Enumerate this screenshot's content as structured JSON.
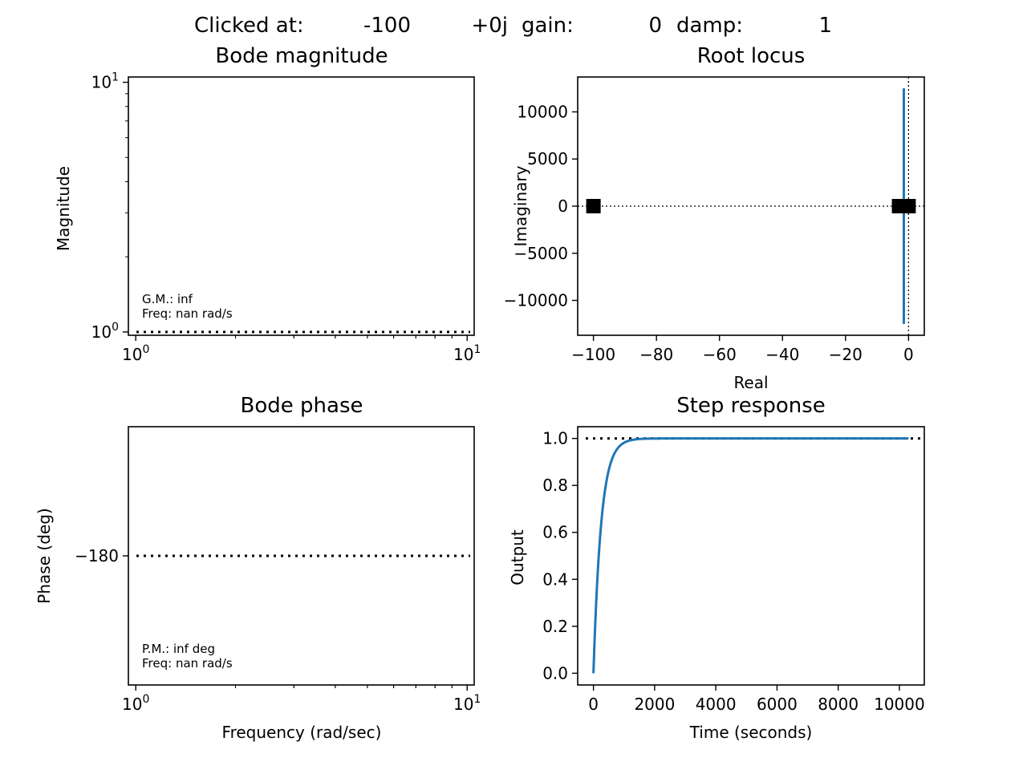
{
  "header": {
    "clicked_label": "Clicked at:",
    "clicked_real": "-100",
    "clicked_imag": "+0j",
    "gain_label": "gain:",
    "gain_value": "0",
    "damp_label": "damp:",
    "damp_value": "1"
  },
  "chart_data": [
    {
      "id": "bode_mag",
      "type": "line",
      "title": "Bode magnitude",
      "xlabel": "",
      "ylabel": "Magnitude",
      "xscale": "log",
      "yscale": "log",
      "xlim": [
        0.95,
        10.5
      ],
      "ylim": [
        0.97,
        10.5
      ],
      "xticks": [
        {
          "v": 1,
          "base": "10",
          "exp": "0"
        },
        {
          "v": 10,
          "base": "10",
          "exp": "1"
        }
      ],
      "yticks": [
        {
          "v": 1,
          "base": "10",
          "exp": "0"
        },
        {
          "v": 10,
          "base": "10",
          "exp": "1"
        }
      ],
      "reference_line": {
        "y": 1,
        "style": "dotted"
      },
      "annotation": [
        "G.M.: inf",
        "Freq: nan rad/s"
      ]
    },
    {
      "id": "root_locus",
      "type": "line",
      "title": "Root locus",
      "xlabel": "Real",
      "ylabel": "Imaginary",
      "xlim": [
        -105,
        5
      ],
      "ylim": [
        -13700,
        13700
      ],
      "xticks": [
        {
          "v": -100,
          "label": "−100"
        },
        {
          "v": -80,
          "label": "−80"
        },
        {
          "v": -60,
          "label": "−60"
        },
        {
          "v": -40,
          "label": "−40"
        },
        {
          "v": -20,
          "label": "−20"
        },
        {
          "v": 0,
          "label": "0"
        }
      ],
      "yticks": [
        {
          "v": 10000,
          "label": "10000"
        },
        {
          "v": 5000,
          "label": "5000"
        },
        {
          "v": 0,
          "label": "0"
        },
        {
          "v": -5000,
          "label": "−5000"
        },
        {
          "v": -10000,
          "label": "−10000"
        }
      ],
      "locus": {
        "x": -1.5,
        "y_min": -12500,
        "y_max": 12500
      },
      "markers": [
        {
          "x": -100,
          "y": 0
        },
        {
          "x": -3,
          "y": 0
        },
        {
          "x": 0,
          "y": 0
        }
      ],
      "reference_lines": [
        {
          "axis": "x",
          "value": 0
        },
        {
          "axis": "y",
          "value": 0
        }
      ]
    },
    {
      "id": "bode_phase",
      "type": "line",
      "title": "Bode phase",
      "xlabel": "Frequency (rad/sec)",
      "ylabel": "Phase (deg)",
      "xscale": "log",
      "xlim": [
        0.95,
        10.5
      ],
      "ylim": [
        -220,
        -140
      ],
      "xticks": [
        {
          "v": 1,
          "base": "10",
          "exp": "0"
        },
        {
          "v": 10,
          "base": "10",
          "exp": "1"
        }
      ],
      "yticks": [
        {
          "v": -180,
          "label": "−180"
        }
      ],
      "reference_line": {
        "y": -180,
        "style": "dotted"
      },
      "annotation": [
        "P.M.: inf deg",
        "Freq: nan rad/s"
      ]
    },
    {
      "id": "step_response",
      "type": "line",
      "title": "Step response",
      "xlabel": "Time (seconds)",
      "ylabel": "Output",
      "xlim": [
        -515,
        10815
      ],
      "ylim": [
        -0.05,
        1.05
      ],
      "xticks": [
        {
          "v": 0,
          "label": "0"
        },
        {
          "v": 2000,
          "label": "2000"
        },
        {
          "v": 4000,
          "label": "4000"
        },
        {
          "v": 6000,
          "label": "6000"
        },
        {
          "v": 8000,
          "label": "8000"
        },
        {
          "v": 10000,
          "label": "10000"
        }
      ],
      "yticks": [
        {
          "v": 0,
          "label": "0.0"
        },
        {
          "v": 0.2,
          "label": "0.2"
        },
        {
          "v": 0.4,
          "label": "0.4"
        },
        {
          "v": 0.6,
          "label": "0.6"
        },
        {
          "v": 0.8,
          "label": "0.8"
        },
        {
          "v": 1,
          "label": "1.0"
        }
      ],
      "reference_line": {
        "y": 1,
        "style": "dotted"
      },
      "series": [
        {
          "name": "output",
          "time_constant": 250,
          "t_end": 10300,
          "final_value": 1
        }
      ]
    }
  ],
  "colors": {
    "line": "#1f77b4",
    "axes": "#000000",
    "marker": "#000000"
  }
}
